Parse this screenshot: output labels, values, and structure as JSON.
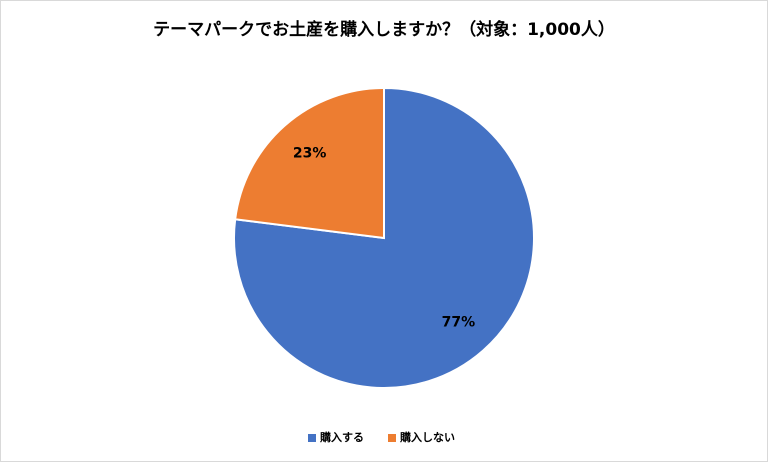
{
  "chart_data": {
    "type": "pie",
    "title": "テーマパークでお土産を購入しますか？（対象：1,000人）",
    "categories": [
      "購入する",
      "購入しない"
    ],
    "values": [
      77,
      23
    ],
    "value_labels": [
      "77%",
      "23%"
    ],
    "colors": [
      "#4472c4",
      "#ed7d31"
    ],
    "legend": "bottom"
  }
}
